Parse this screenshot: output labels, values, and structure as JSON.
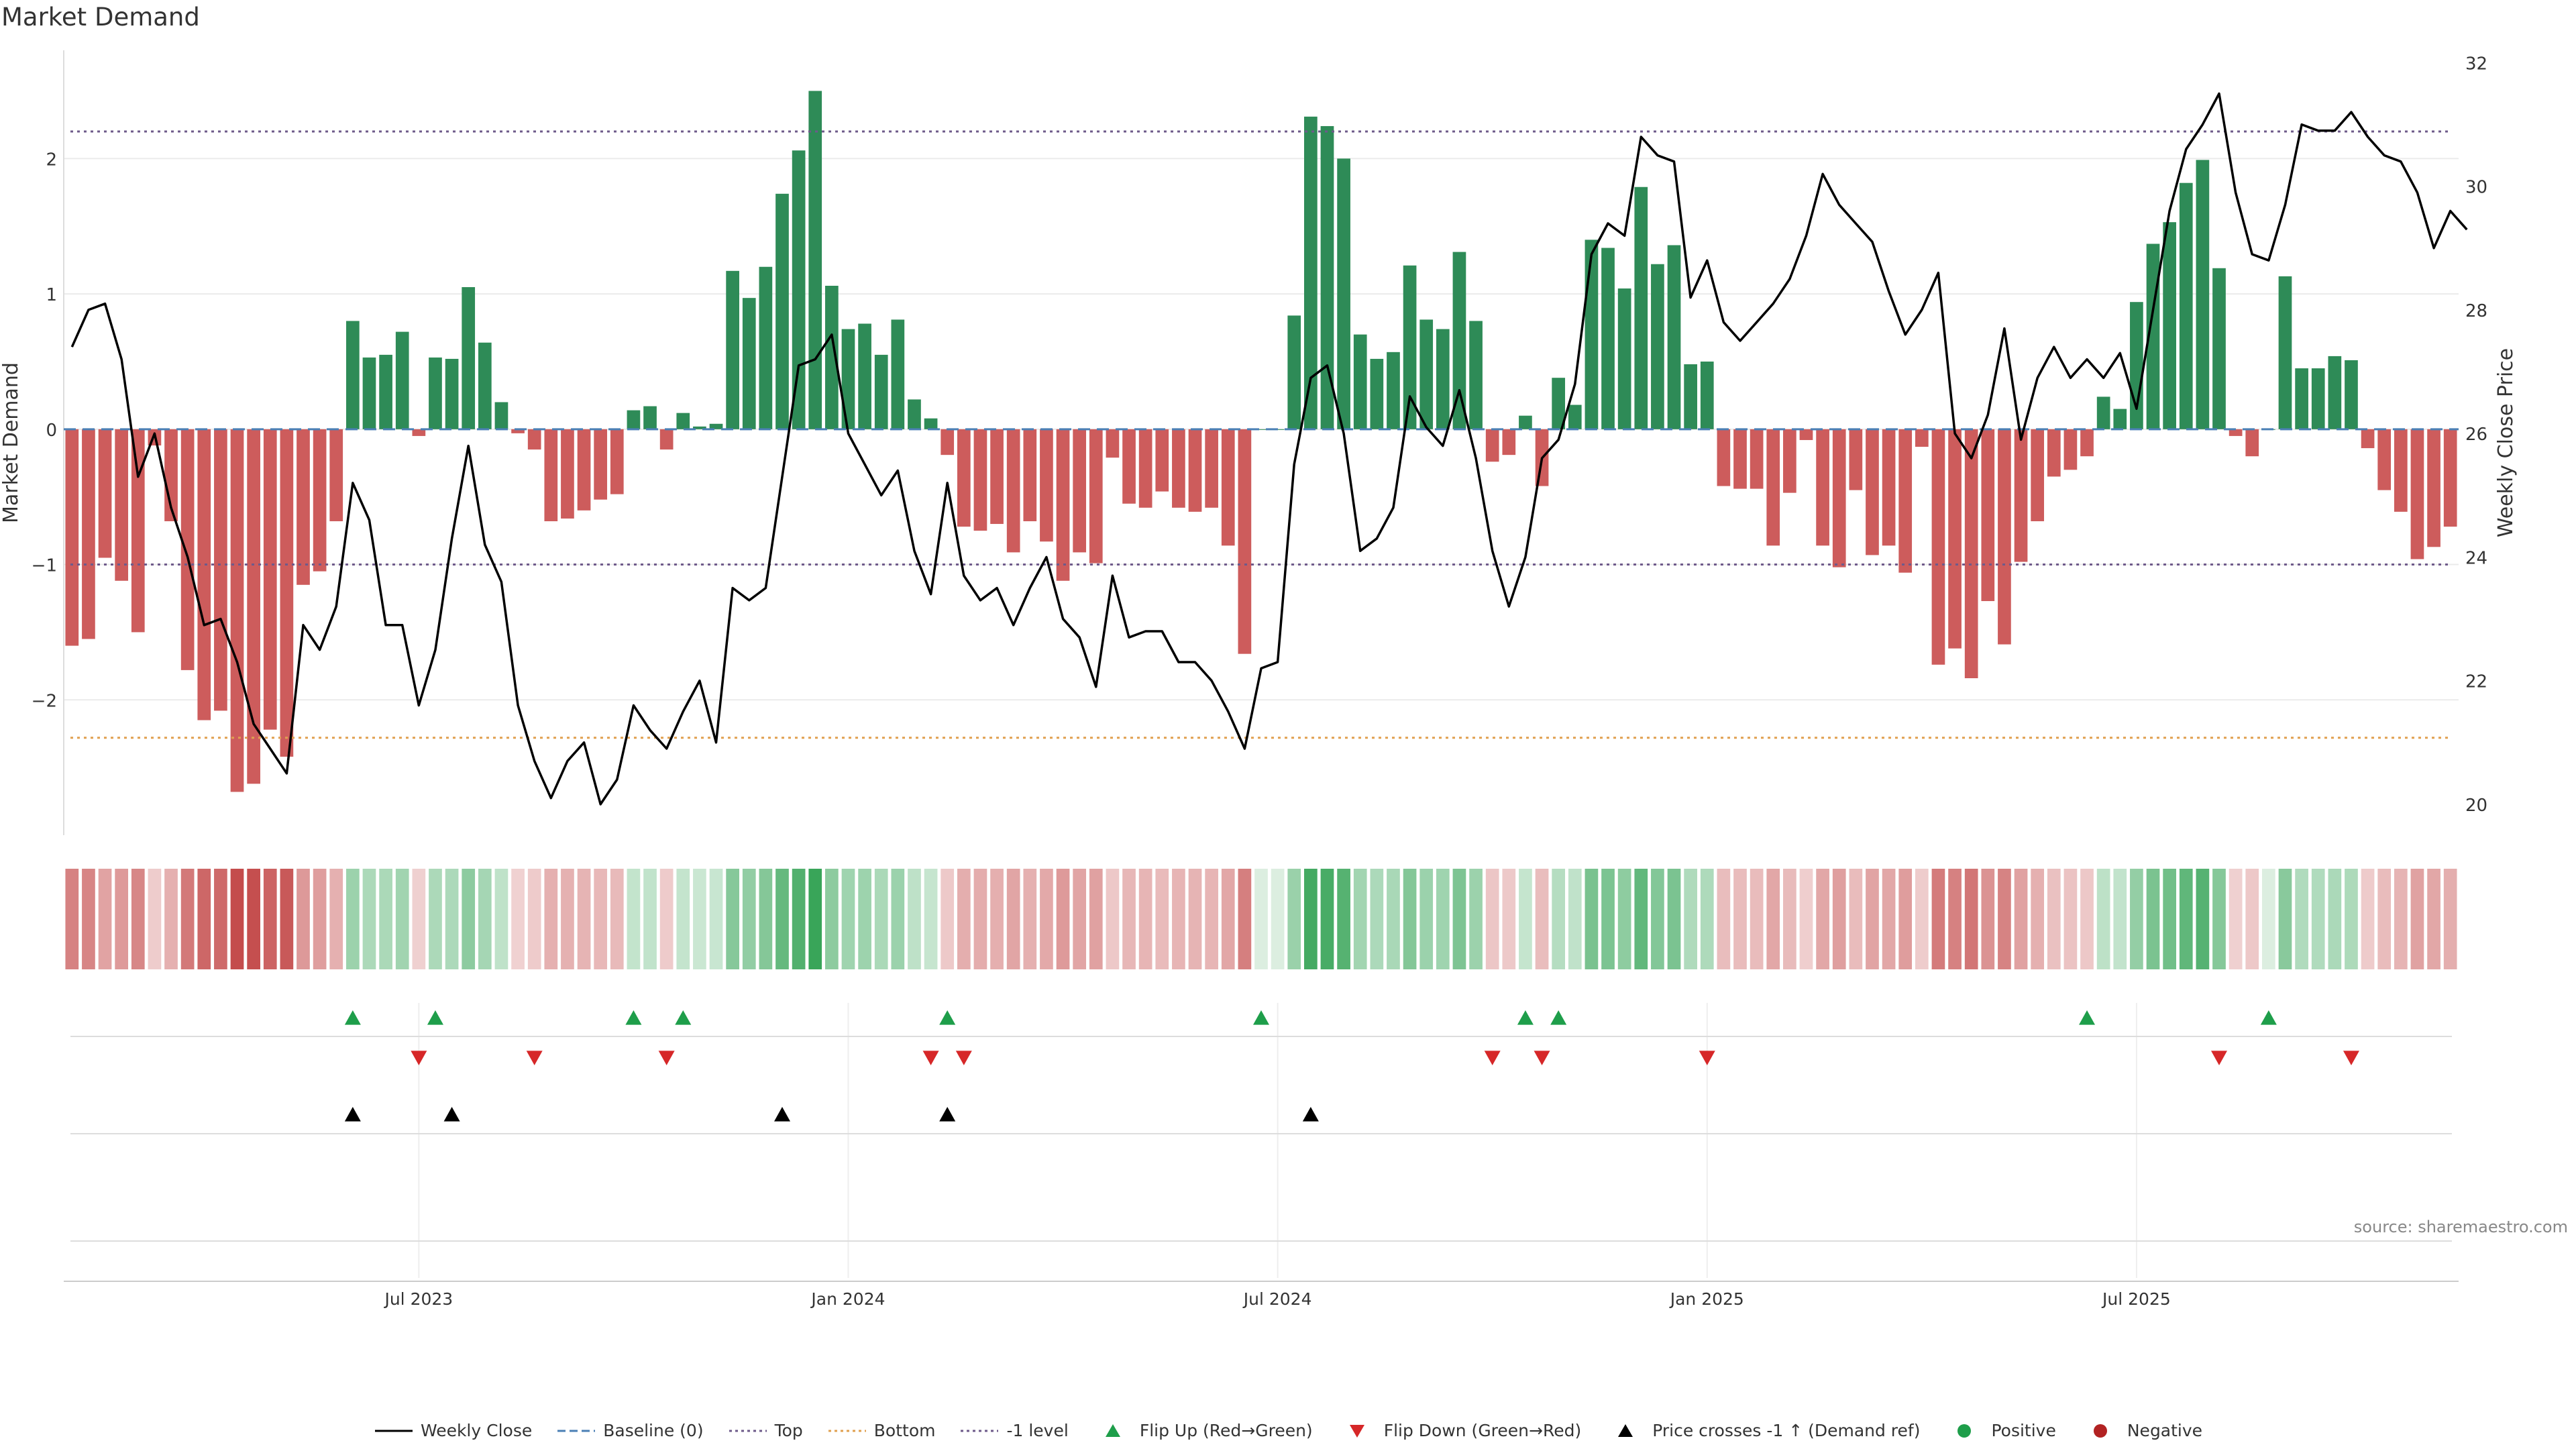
{
  "title": "Market Demand",
  "source": "source: sharemaestro.com",
  "chart_data": {
    "type": "bar",
    "ylabel_left": "Market Demand",
    "ylabel_right": "Weekly Close Price",
    "left_ticks": [
      "2",
      "1",
      "0",
      "−1",
      "−2"
    ],
    "left_tick_values": [
      2,
      1,
      0,
      -1,
      -2
    ],
    "right_ticks": [
      "32",
      "30",
      "28",
      "26",
      "24",
      "22",
      "20"
    ],
    "right_tick_values": [
      32,
      30,
      28,
      26,
      24,
      22,
      20
    ],
    "ylim_left": [
      -3.0,
      2.8
    ],
    "ylim_right": [
      19.5,
      32.2
    ],
    "x_labels": [
      "Jul 2023",
      "Jan 2024",
      "Jul 2024",
      "Jan 2025",
      "Jul 2025"
    ],
    "x_label_weeks": [
      21.5,
      47.5,
      73.5,
      99.5,
      125.5
    ],
    "reference_lines": [
      {
        "name": "Top",
        "value": 2.2,
        "color": "#6e5a8a"
      },
      {
        "name": "Bottom",
        "value": -2.28,
        "color": "#e0a050"
      },
      {
        "name": "-1 level",
        "value": -1.0,
        "color": "#6e5a8a"
      }
    ],
    "demand": [
      -1.6,
      -1.55,
      -0.95,
      -1.12,
      -1.5,
      -0.12,
      -0.68,
      -1.78,
      -2.15,
      -2.08,
      -2.68,
      -2.62,
      -2.22,
      -2.42,
      -1.15,
      -1.05,
      -0.68,
      0.8,
      0.53,
      0.55,
      0.72,
      -0.05,
      0.53,
      0.52,
      1.05,
      0.64,
      0.2,
      -0.03,
      -0.15,
      -0.68,
      -0.66,
      -0.6,
      -0.52,
      -0.48,
      0.14,
      0.17,
      -0.15,
      0.12,
      0.02,
      0.04,
      1.17,
      0.97,
      1.2,
      1.74,
      2.06,
      2.5,
      1.06,
      0.74,
      0.78,
      0.55,
      0.81,
      0.22,
      0.08,
      -0.19,
      -0.72,
      -0.75,
      -0.7,
      -0.91,
      -0.68,
      -0.83,
      -1.12,
      -0.91,
      -0.99,
      -0.21,
      -0.55,
      -0.58,
      -0.46,
      -0.58,
      -0.61,
      -0.58,
      -0.86,
      -1.66,
      0.0,
      0.0,
      0.84,
      2.31,
      2.24,
      2.0,
      0.7,
      0.52,
      0.57,
      1.21,
      0.81,
      0.74,
      1.31,
      0.8,
      -0.24,
      -0.19,
      0.1,
      -0.42,
      0.38,
      0.18,
      1.4,
      1.34,
      1.04,
      1.79,
      1.22,
      1.36,
      0.48,
      0.5,
      -0.42,
      -0.44,
      -0.44,
      -0.86,
      -0.47,
      -0.08,
      -0.86,
      -1.02,
      -0.45,
      -0.93,
      -0.86,
      -1.06,
      -0.13,
      -1.74,
      -1.62,
      -1.84,
      -1.27,
      -1.59,
      -0.98,
      -0.68,
      -0.35,
      -0.3,
      -0.2,
      0.24,
      0.15,
      0.94,
      1.37,
      1.53,
      1.82,
      1.99,
      1.19,
      -0.05,
      -0.2,
      0.0,
      1.13,
      0.45,
      0.45,
      0.54,
      0.51,
      -0.14,
      -0.45,
      -0.61,
      -0.96,
      -0.87,
      -0.72
    ],
    "price": [
      27.4,
      28.0,
      28.1,
      27.2,
      25.3,
      26.0,
      24.8,
      24.0,
      22.9,
      23.0,
      22.3,
      21.3,
      20.9,
      20.5,
      22.9,
      22.5,
      23.2,
      25.2,
      24.6,
      22.9,
      22.9,
      21.6,
      22.5,
      24.3,
      25.8,
      24.2,
      23.6,
      21.6,
      20.7,
      20.1,
      20.7,
      21.0,
      20.0,
      20.4,
      21.6,
      21.2,
      20.9,
      21.5,
      22.0,
      21.0,
      23.5,
      23.3,
      23.5,
      25.3,
      27.1,
      27.2,
      27.6,
      26.0,
      25.5,
      25.0,
      25.4,
      24.1,
      23.4,
      25.2,
      23.7,
      23.3,
      23.5,
      22.9,
      23.5,
      24.0,
      23.0,
      22.7,
      21.9,
      23.7,
      22.7,
      22.8,
      22.8,
      22.3,
      22.3,
      22.0,
      21.5,
      20.9,
      22.2,
      22.3,
      25.5,
      26.9,
      27.1,
      26.0,
      24.1,
      24.3,
      24.8,
      26.6,
      26.1,
      25.8,
      26.7,
      25.6,
      24.1,
      23.2,
      24.0,
      25.6,
      25.9,
      26.8,
      28.9,
      29.4,
      29.2,
      30.8,
      30.5,
      30.4,
      28.2,
      28.8,
      27.8,
      27.5,
      27.8,
      28.1,
      28.5,
      29.2,
      30.2,
      29.7,
      29.4,
      29.1,
      28.3,
      27.6,
      28.0,
      28.6,
      26.0,
      25.6,
      26.3,
      27.7,
      25.9,
      26.9,
      27.4,
      26.9,
      27.2,
      26.9,
      27.3,
      26.4,
      28.0,
      29.6,
      30.6,
      31.0,
      31.5,
      29.9,
      28.9,
      28.8,
      29.7,
      31.0,
      30.9,
      30.9,
      31.2,
      30.8,
      30.5,
      30.4,
      29.9,
      29.0,
      29.6,
      29.3
    ],
    "flip_up_weeks": [
      17,
      22,
      34,
      37,
      53,
      72,
      88,
      90,
      122,
      133
    ],
    "flip_down_weeks": [
      21,
      28,
      36,
      52,
      54,
      86,
      89,
      99,
      130,
      138
    ],
    "price_cross_weeks": [
      17,
      23,
      43,
      53,
      75
    ],
    "legend": [
      {
        "label": "Weekly Close",
        "symbol": "line",
        "color": "#000000"
      },
      {
        "label": "Baseline (0)",
        "symbol": "dash",
        "color": "#4a7fb5"
      },
      {
        "label": "Top",
        "symbol": "dot",
        "color": "#6e5a8a"
      },
      {
        "label": "Bottom",
        "symbol": "dot",
        "color": "#e0a050"
      },
      {
        "label": "-1 level",
        "symbol": "dot",
        "color": "#6e5a8a"
      },
      {
        "label": "Flip Up (Red→Green)",
        "symbol": "tri-up",
        "color": "#1e9e4a"
      },
      {
        "label": "Flip Down (Green→Red)",
        "symbol": "tri-down",
        "color": "#d62728"
      },
      {
        "label": "Price crosses -1 ↑ (Demand ref)",
        "symbol": "tri-up",
        "color": "#000000"
      },
      {
        "label": "Positive",
        "symbol": "circle",
        "color": "#1e9e4a"
      },
      {
        "label": "Negative",
        "symbol": "circle",
        "color": "#b22222"
      }
    ]
  },
  "colors": {
    "positive_bar": "#2e8b57",
    "negative_bar": "#cd5c5c",
    "price_line": "#000000",
    "baseline": "#4a7fb5",
    "grid": "#ebebeb"
  }
}
